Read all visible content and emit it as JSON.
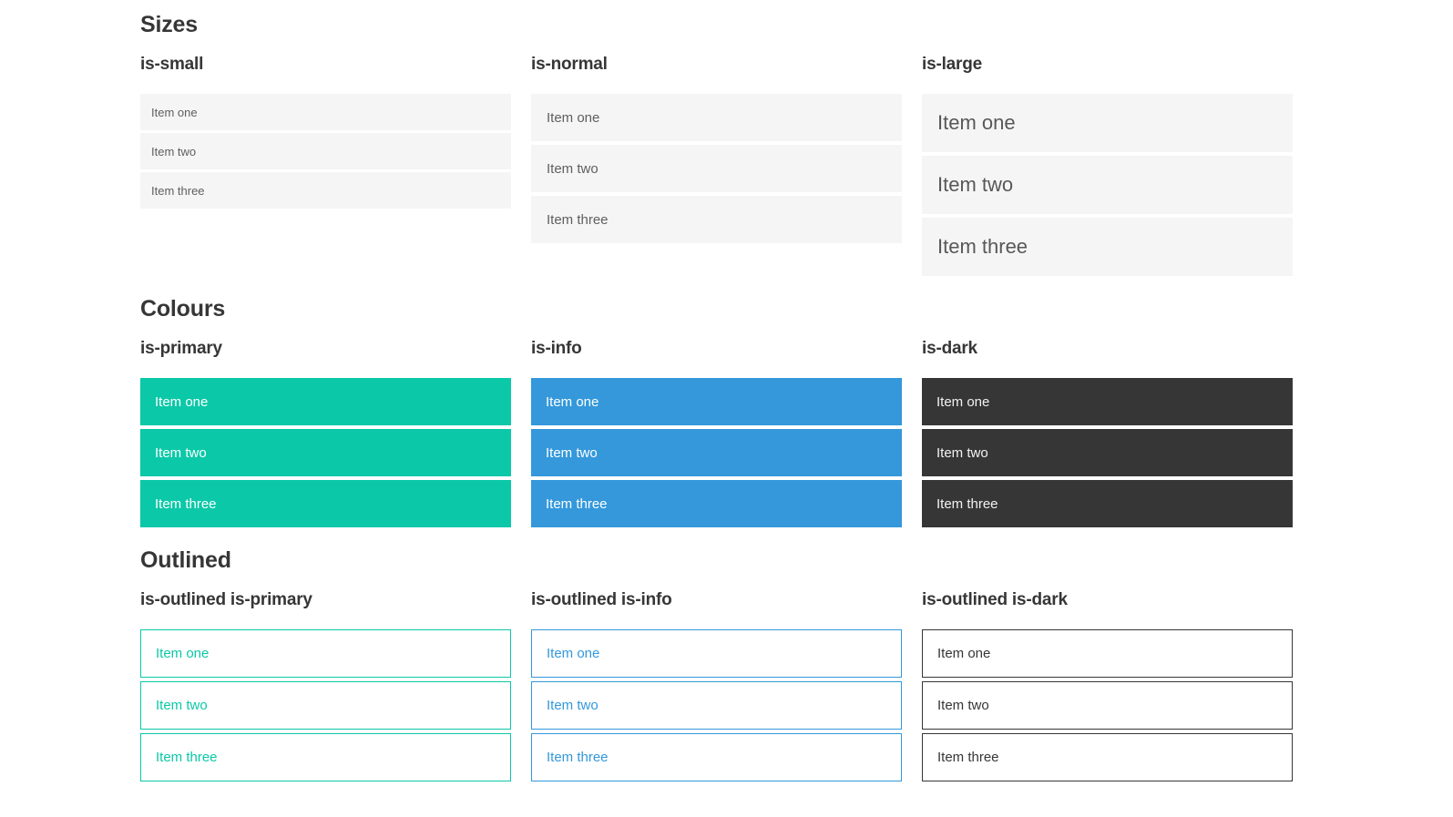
{
  "colors": {
    "primary": "#0bc8a8",
    "info": "#3498db",
    "dark": "#363636",
    "light": "#f5f5f5",
    "heading": "#363636",
    "text_muted": "#5f5f5f"
  },
  "sections": [
    {
      "title": "Sizes",
      "groups": [
        {
          "label": "is-small",
          "items": [
            "Item one",
            "Item two",
            "Item three"
          ]
        },
        {
          "label": "is-normal",
          "items": [
            "Item one",
            "Item two",
            "Item three"
          ]
        },
        {
          "label": "is-large",
          "items": [
            "Item one",
            "Item two",
            "Item three"
          ]
        }
      ]
    },
    {
      "title": "Colours",
      "groups": [
        {
          "label": "is-primary",
          "items": [
            "Item one",
            "Item two",
            "Item three"
          ]
        },
        {
          "label": "is-info",
          "items": [
            "Item one",
            "Item two",
            "Item three"
          ]
        },
        {
          "label": "is-dark",
          "items": [
            "Item one",
            "Item two",
            "Item three"
          ]
        }
      ]
    },
    {
      "title": "Outlined",
      "groups": [
        {
          "label": "is-outlined is-primary",
          "items": [
            "Item one",
            "Item two",
            "Item three"
          ]
        },
        {
          "label": "is-outlined is-info",
          "items": [
            "Item one",
            "Item two",
            "Item three"
          ]
        },
        {
          "label": "is-outlined is-dark",
          "items": [
            "Item one",
            "Item two",
            "Item three"
          ]
        }
      ]
    }
  ]
}
